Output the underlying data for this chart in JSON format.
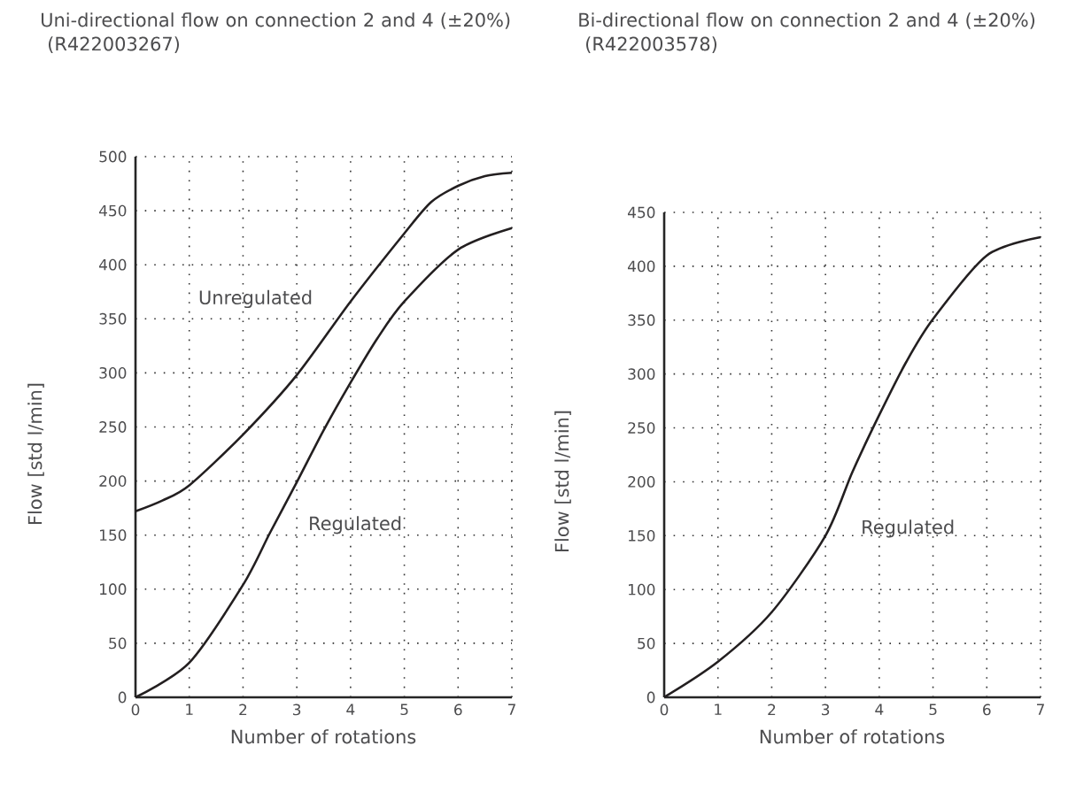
{
  "chart_data": [
    {
      "type": "line",
      "title": "Uni-directional flow on connection 2 and 4 (±20%)",
      "subtitle": "(R422003267)",
      "xlabel": "Number of rotations",
      "ylabel": "Flow [std l/min]",
      "x": [
        0,
        0.5,
        1,
        2,
        2.5,
        3,
        3.5,
        4,
        4.5,
        5,
        5.5,
        6,
        6.5,
        7
      ],
      "series": [
        {
          "name": "Unregulated",
          "color": "#231f20",
          "values": [
            172,
            182,
            196,
            243,
            null,
            298,
            null,
            366,
            null,
            429,
            458,
            473,
            482,
            485
          ]
        },
        {
          "name": "Regulated",
          "color": "#231f20",
          "values": [
            0,
            null,
            32,
            104,
            152,
            199,
            247,
            291,
            332,
            366,
            null,
            414,
            null,
            434
          ]
        }
      ],
      "xlim": [
        0,
        7
      ],
      "ylim": [
        0,
        500
      ],
      "xticks": [
        0,
        1,
        2,
        3,
        4,
        5,
        6,
        7
      ],
      "yticks": [
        0,
        50,
        100,
        150,
        200,
        250,
        300,
        350,
        400,
        450,
        500
      ],
      "grid": true
    },
    {
      "type": "line",
      "title": "Bi-directional flow on connection 2 and 4 (±20%)",
      "subtitle": "(R422003578)",
      "xlabel": "Number of rotations",
      "ylabel": "Flow [std l/min]",
      "x": [
        0,
        1,
        2,
        3,
        3.5,
        4,
        4.5,
        5,
        6,
        7
      ],
      "series": [
        {
          "name": "Regulated",
          "color": "#231f20",
          "values": [
            0,
            33,
            79,
            150,
            209,
            262,
            311,
            351,
            410,
            427
          ]
        }
      ],
      "xlim": [
        0,
        7
      ],
      "ylim": [
        0,
        450
      ],
      "xticks": [
        0,
        1,
        2,
        3,
        4,
        5,
        6,
        7
      ],
      "yticks": [
        0,
        50,
        100,
        150,
        200,
        250,
        300,
        350,
        400,
        450
      ],
      "grid": true
    }
  ]
}
